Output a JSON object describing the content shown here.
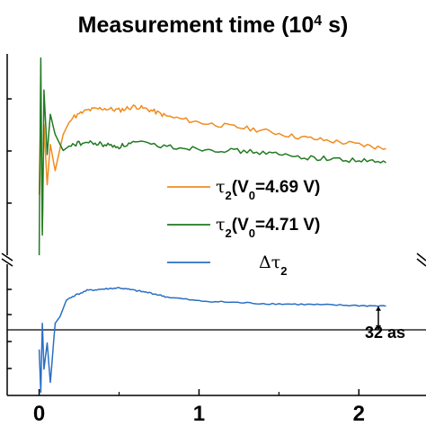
{
  "chart_data": {
    "type": "line",
    "title": "Measurement time (10",
    "title_sup": "4",
    "title_tail": " s)",
    "xlabel": "",
    "ylabel": "",
    "x_ticks": [
      "0",
      "1",
      "2"
    ],
    "xlim": [
      -0.2,
      2.42
    ],
    "grid": false,
    "legend_position": "center-right",
    "axis_break": true,
    "upper_panel": {
      "ylim": [
        0,
        1
      ],
      "series": [
        {
          "name": "τ2(V0=4.69 V)",
          "legend": {
            "sym": "τ",
            "sub1": "2",
            "mid": "(V",
            "sub2": "0",
            "tail": "=4.69 V)"
          },
          "color": "#f08c1e",
          "x": [
            0.0,
            0.01,
            0.02,
            0.03,
            0.05,
            0.07,
            0.1,
            0.15,
            0.2,
            0.3,
            0.4,
            0.5,
            0.6,
            0.7,
            0.8,
            1.0,
            1.2,
            1.4,
            1.6,
            1.8,
            2.0,
            2.17
          ],
          "y": [
            0.3,
            0.75,
            0.12,
            0.65,
            0.35,
            0.55,
            0.42,
            0.6,
            0.68,
            0.72,
            0.73,
            0.72,
            0.74,
            0.72,
            0.69,
            0.66,
            0.64,
            0.62,
            0.59,
            0.57,
            0.55,
            0.53
          ]
        },
        {
          "name": "τ2(V0=4.71 V)",
          "legend": {
            "sym": "τ",
            "sub1": "2",
            "mid": "(V",
            "sub2": "0",
            "tail": "=4.71 V)"
          },
          "color": "#217a21",
          "x": [
            0.0,
            0.01,
            0.02,
            0.03,
            0.05,
            0.07,
            0.1,
            0.15,
            0.2,
            0.3,
            0.4,
            0.5,
            0.6,
            0.8,
            1.0,
            1.2,
            1.4,
            1.6,
            1.8,
            2.0,
            2.17
          ],
          "y": [
            0.0,
            0.98,
            0.1,
            0.82,
            0.5,
            0.7,
            0.6,
            0.52,
            0.55,
            0.56,
            0.55,
            0.54,
            0.56,
            0.54,
            0.53,
            0.52,
            0.51,
            0.49,
            0.48,
            0.47,
            0.46
          ]
        }
      ]
    },
    "lower_panel": {
      "ylim": [
        -1,
        1
      ],
      "series": [
        {
          "name": "Δτ2",
          "legend": {
            "sym": "Δτ",
            "sub1": "2",
            "mid": "",
            "sub2": "",
            "tail": ""
          },
          "color": "#2a6fc4",
          "x": [
            0.0,
            0.01,
            0.02,
            0.03,
            0.05,
            0.07,
            0.1,
            0.13,
            0.17,
            0.2,
            0.3,
            0.4,
            0.5,
            0.6,
            0.7,
            0.8,
            1.0,
            1.2,
            1.4,
            1.6,
            1.8,
            2.0,
            2.17
          ],
          "y": [
            -0.3,
            -0.95,
            0.1,
            -0.6,
            -0.2,
            -0.8,
            0.1,
            0.2,
            0.45,
            0.5,
            0.6,
            0.62,
            0.64,
            0.6,
            0.56,
            0.5,
            0.44,
            0.42,
            0.4,
            0.39,
            0.38,
            0.37,
            0.36
          ]
        }
      ],
      "reference_line_y": 0,
      "annotation": "32 as"
    }
  }
}
